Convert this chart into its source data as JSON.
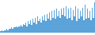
{
  "values": [
    1,
    2,
    1,
    2,
    2,
    3,
    2,
    3,
    3,
    4,
    3,
    4,
    4,
    5,
    4,
    5,
    5,
    6,
    5,
    7,
    6,
    8,
    5,
    9,
    7,
    10,
    6,
    11,
    8,
    12,
    7,
    13,
    9,
    11,
    8,
    13,
    10,
    14,
    9,
    15,
    11,
    16,
    10,
    17,
    12,
    18,
    11,
    19,
    13,
    17,
    12,
    19,
    14,
    20,
    13,
    21,
    11,
    19,
    12,
    20,
    10,
    18,
    13,
    21,
    9,
    19,
    11,
    17,
    13,
    20,
    10,
    22,
    11,
    19,
    12,
    17,
    10,
    20,
    12,
    24
  ],
  "bar_color": "#5ba3d9",
  "edge_color": "#4a90c4",
  "background_color": "#ffffff",
  "ylim_min": -2,
  "ylim_max": 26,
  "figwidth": 1.2,
  "figheight": 0.45,
  "dpi": 100
}
